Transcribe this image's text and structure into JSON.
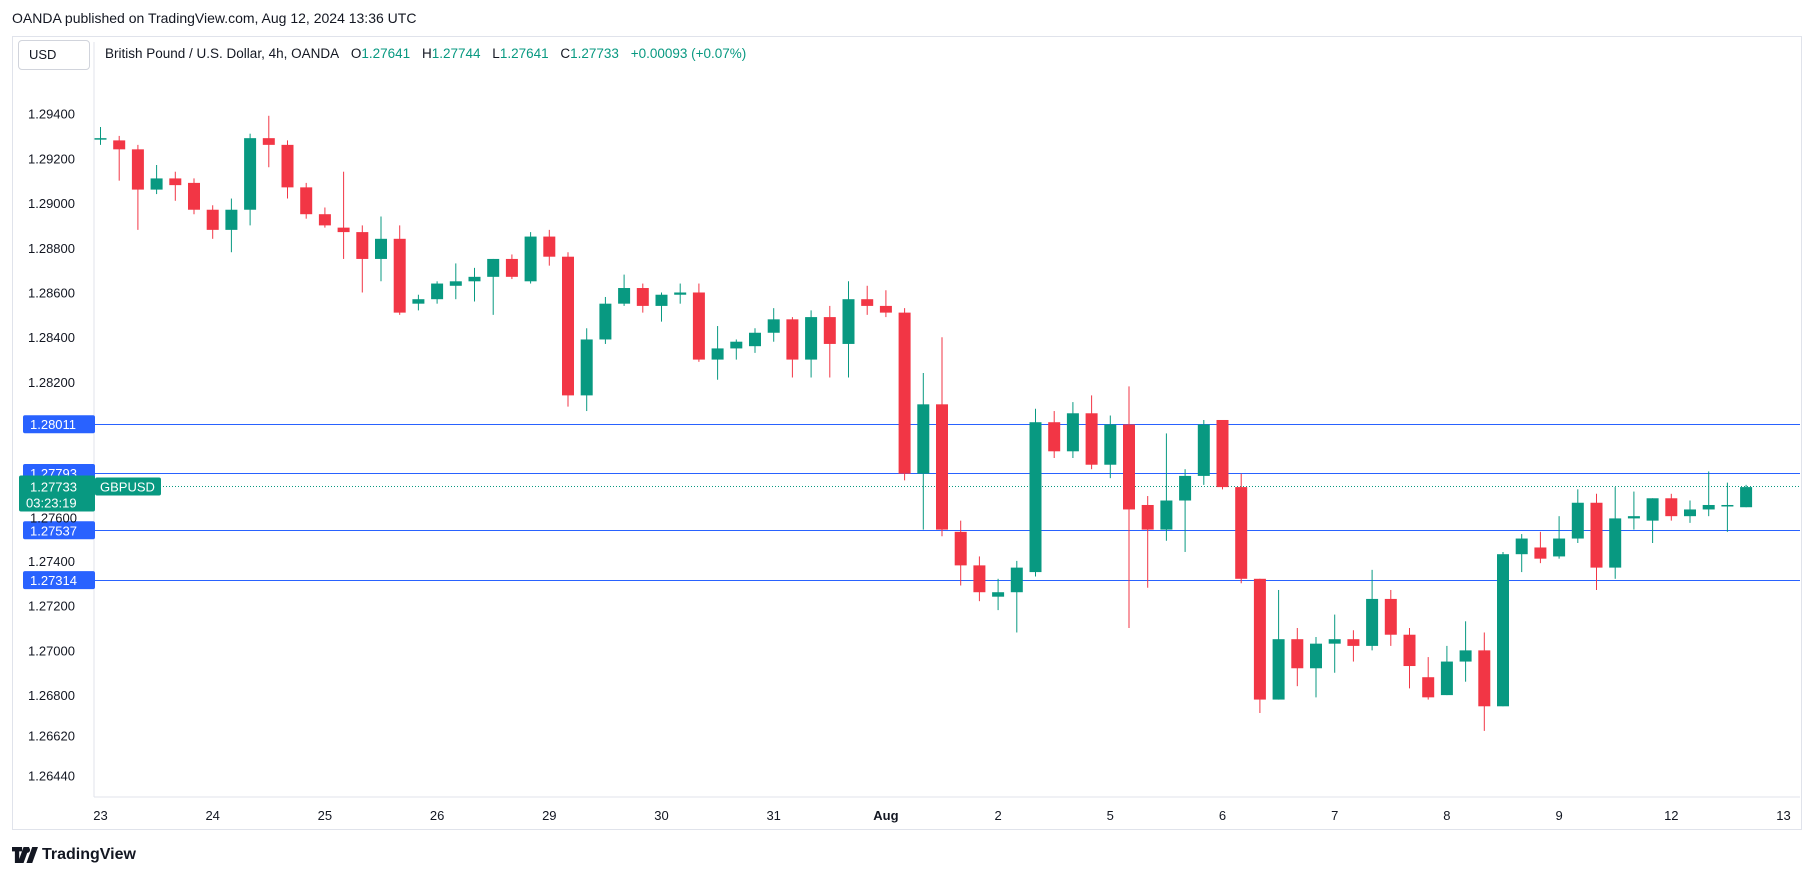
{
  "header": {
    "publisher": "OANDA published on TradingView.com, Aug 12, 2024 13:36 UTC"
  },
  "toolbar": {
    "currency": "USD"
  },
  "legend": {
    "symbol": "British Pound / U.S. Dollar, 4h, OANDA",
    "o_label": "O",
    "o_value": "1.27641",
    "h_label": "H",
    "h_value": "1.27744",
    "l_label": "L",
    "l_value": "1.27641",
    "c_label": "C",
    "c_value": "1.27733",
    "change": "+0.00093 (+0.07%)"
  },
  "footer": {
    "brand": "TradingView"
  },
  "colors": {
    "up": "#089981",
    "down": "#f23645",
    "level_line": "#2962ff",
    "label_bg": "#2962ff",
    "price_bg": "#089981",
    "text": "#131722",
    "axis_text": "#131722"
  },
  "chart_data": {
    "type": "candlestick",
    "symbol": "GBPUSD",
    "timeframe": "4h",
    "ylim": [
      1.2634,
      1.2955
    ],
    "y_ticks": [
      "1.29400",
      "1.29200",
      "1.29000",
      "1.28800",
      "1.28600",
      "1.28400",
      "1.28200",
      "1.27400",
      "1.27200",
      "1.27000",
      "1.26800",
      "1.26620",
      "1.26440"
    ],
    "x_ticks": [
      {
        "label": "23",
        "bar": 0
      },
      {
        "label": "24",
        "bar": 6
      },
      {
        "label": "25",
        "bar": 12
      },
      {
        "label": "26",
        "bar": 18
      },
      {
        "label": "29",
        "bar": 24
      },
      {
        "label": "30",
        "bar": 30
      },
      {
        "label": "31",
        "bar": 36
      },
      {
        "label": "Aug",
        "bar": 42
      },
      {
        "label": "2",
        "bar": 48
      },
      {
        "label": "5",
        "bar": 54
      },
      {
        "label": "6",
        "bar": 60
      },
      {
        "label": "7",
        "bar": 66
      },
      {
        "label": "8",
        "bar": 72
      },
      {
        "label": "9",
        "bar": 78
      },
      {
        "label": "12",
        "bar": 84
      },
      {
        "label": "13",
        "bar": 90
      }
    ],
    "levels": [
      {
        "value": 1.28011,
        "label": "1.28011"
      },
      {
        "value": 1.27793,
        "label": "1.27793"
      },
      {
        "value": 1.27537,
        "label": "1.27537"
      },
      {
        "value": 1.27314,
        "label": "1.27314"
      }
    ],
    "current_price": {
      "value": 1.27733,
      "label": "1.27733",
      "countdown": "03:23:19",
      "symbol_tag": "GBPUSD",
      "hidden_tick": "1.27600"
    },
    "candles": [
      {
        "o": 1.2929,
        "h": 1.2934,
        "l": 1.2926,
        "c": 1.2929
      },
      {
        "o": 1.2928,
        "h": 1.293,
        "l": 1.291,
        "c": 1.2924
      },
      {
        "o": 1.2924,
        "h": 1.2926,
        "l": 1.2888,
        "c": 1.2906
      },
      {
        "o": 1.2906,
        "h": 1.2917,
        "l": 1.2904,
        "c": 1.2911
      },
      {
        "o": 1.2911,
        "h": 1.2914,
        "l": 1.2901,
        "c": 1.2908
      },
      {
        "o": 1.2909,
        "h": 1.2911,
        "l": 1.2895,
        "c": 1.2897
      },
      {
        "o": 1.2897,
        "h": 1.2899,
        "l": 1.2884,
        "c": 1.2888
      },
      {
        "o": 1.2888,
        "h": 1.2902,
        "l": 1.2878,
        "c": 1.2897
      },
      {
        "o": 1.2897,
        "h": 1.2931,
        "l": 1.289,
        "c": 1.2929
      },
      {
        "o": 1.2929,
        "h": 1.2939,
        "l": 1.2916,
        "c": 1.2926
      },
      {
        "o": 1.2926,
        "h": 1.2928,
        "l": 1.2902,
        "c": 1.2907
      },
      {
        "o": 1.2907,
        "h": 1.2909,
        "l": 1.2893,
        "c": 1.2895
      },
      {
        "o": 1.2895,
        "h": 1.2898,
        "l": 1.2889,
        "c": 1.289
      },
      {
        "o": 1.2889,
        "h": 1.2914,
        "l": 1.2875,
        "c": 1.2887
      },
      {
        "o": 1.2887,
        "h": 1.289,
        "l": 1.286,
        "c": 1.2875
      },
      {
        "o": 1.2875,
        "h": 1.2894,
        "l": 1.2865,
        "c": 1.2884
      },
      {
        "o": 1.2884,
        "h": 1.289,
        "l": 1.285,
        "c": 1.2851
      },
      {
        "o": 1.2855,
        "h": 1.2859,
        "l": 1.2852,
        "c": 1.2857
      },
      {
        "o": 1.2857,
        "h": 1.2865,
        "l": 1.2855,
        "c": 1.2864
      },
      {
        "o": 1.2863,
        "h": 1.2873,
        "l": 1.2857,
        "c": 1.2865
      },
      {
        "o": 1.2865,
        "h": 1.2871,
        "l": 1.2856,
        "c": 1.2867
      },
      {
        "o": 1.2867,
        "h": 1.2875,
        "l": 1.285,
        "c": 1.2875
      },
      {
        "o": 1.2875,
        "h": 1.2877,
        "l": 1.2866,
        "c": 1.2867
      },
      {
        "o": 1.2865,
        "h": 1.2887,
        "l": 1.2864,
        "c": 1.2885
      },
      {
        "o": 1.2885,
        "h": 1.2888,
        "l": 1.2872,
        "c": 1.2876
      },
      {
        "o": 1.2876,
        "h": 1.2878,
        "l": 1.2809,
        "c": 1.2814
      },
      {
        "o": 1.2814,
        "h": 1.2844,
        "l": 1.2807,
        "c": 1.2839
      },
      {
        "o": 1.2839,
        "h": 1.2858,
        "l": 1.2837,
        "c": 1.2855
      },
      {
        "o": 1.2855,
        "h": 1.2868,
        "l": 1.2854,
        "c": 1.2862
      },
      {
        "o": 1.2862,
        "h": 1.2864,
        "l": 1.2851,
        "c": 1.2854
      },
      {
        "o": 1.2854,
        "h": 1.286,
        "l": 1.2847,
        "c": 1.2859
      },
      {
        "o": 1.2859,
        "h": 1.2864,
        "l": 1.2855,
        "c": 1.286
      },
      {
        "o": 1.286,
        "h": 1.2864,
        "l": 1.2829,
        "c": 1.283
      },
      {
        "o": 1.283,
        "h": 1.2845,
        "l": 1.2821,
        "c": 1.2835
      },
      {
        "o": 1.2835,
        "h": 1.2839,
        "l": 1.283,
        "c": 1.2838
      },
      {
        "o": 1.2836,
        "h": 1.2844,
        "l": 1.2833,
        "c": 1.2842
      },
      {
        "o": 1.2842,
        "h": 1.2853,
        "l": 1.2838,
        "c": 1.2848
      },
      {
        "o": 1.2848,
        "h": 1.2849,
        "l": 1.2822,
        "c": 1.283
      },
      {
        "o": 1.283,
        "h": 1.2852,
        "l": 1.2822,
        "c": 1.2849
      },
      {
        "o": 1.2849,
        "h": 1.2854,
        "l": 1.2822,
        "c": 1.2837
      },
      {
        "o": 1.2837,
        "h": 1.2865,
        "l": 1.2822,
        "c": 1.2857
      },
      {
        "o": 1.2857,
        "h": 1.2863,
        "l": 1.285,
        "c": 1.2854
      },
      {
        "o": 1.2854,
        "h": 1.2861,
        "l": 1.2849,
        "c": 1.2851
      },
      {
        "o": 1.2851,
        "h": 1.2853,
        "l": 1.2776,
        "c": 1.2779
      },
      {
        "o": 1.2779,
        "h": 1.2824,
        "l": 1.2754,
        "c": 1.281
      },
      {
        "o": 1.281,
        "h": 1.284,
        "l": 1.2751,
        "c": 1.2754
      },
      {
        "o": 1.2753,
        "h": 1.2758,
        "l": 1.2729,
        "c": 1.2738
      },
      {
        "o": 1.2738,
        "h": 1.2742,
        "l": 1.2722,
        "c": 1.2726
      },
      {
        "o": 1.2724,
        "h": 1.2732,
        "l": 1.2718,
        "c": 1.2726
      },
      {
        "o": 1.2726,
        "h": 1.274,
        "l": 1.2708,
        "c": 1.2737
      },
      {
        "o": 1.2735,
        "h": 1.2808,
        "l": 1.2733,
        "c": 1.2802
      },
      {
        "o": 1.2802,
        "h": 1.2807,
        "l": 1.2786,
        "c": 1.2789
      },
      {
        "o": 1.2789,
        "h": 1.2811,
        "l": 1.2786,
        "c": 1.2806
      },
      {
        "o": 1.2806,
        "h": 1.2814,
        "l": 1.2781,
        "c": 1.2783
      },
      {
        "o": 1.2783,
        "h": 1.2805,
        "l": 1.2777,
        "c": 1.2801
      },
      {
        "o": 1.2801,
        "h": 1.2818,
        "l": 1.271,
        "c": 1.2763
      },
      {
        "o": 1.2765,
        "h": 1.2769,
        "l": 1.2728,
        "c": 1.2754
      },
      {
        "o": 1.2754,
        "h": 1.2797,
        "l": 1.2749,
        "c": 1.2767
      },
      {
        "o": 1.2767,
        "h": 1.2781,
        "l": 1.2744,
        "c": 1.2778
      },
      {
        "o": 1.2778,
        "h": 1.2803,
        "l": 1.2774,
        "c": 1.2801
      },
      {
        "o": 1.2803,
        "h": 1.2803,
        "l": 1.2772,
        "c": 1.2773
      },
      {
        "o": 1.2773,
        "h": 1.2779,
        "l": 1.273,
        "c": 1.2732
      },
      {
        "o": 1.2732,
        "h": 1.2732,
        "l": 1.2672,
        "c": 1.2678
      },
      {
        "o": 1.2678,
        "h": 1.2727,
        "l": 1.2678,
        "c": 1.2705
      },
      {
        "o": 1.2705,
        "h": 1.271,
        "l": 1.2684,
        "c": 1.2692
      },
      {
        "o": 1.2692,
        "h": 1.2706,
        "l": 1.2679,
        "c": 1.2703
      },
      {
        "o": 1.2703,
        "h": 1.2716,
        "l": 1.269,
        "c": 1.2705
      },
      {
        "o": 1.2705,
        "h": 1.2709,
        "l": 1.2695,
        "c": 1.2702
      },
      {
        "o": 1.2702,
        "h": 1.2736,
        "l": 1.27,
        "c": 1.2723
      },
      {
        "o": 1.2723,
        "h": 1.2727,
        "l": 1.2702,
        "c": 1.2707
      },
      {
        "o": 1.2707,
        "h": 1.271,
        "l": 1.2683,
        "c": 1.2693
      },
      {
        "o": 1.2688,
        "h": 1.2697,
        "l": 1.2678,
        "c": 1.2679
      },
      {
        "o": 1.268,
        "h": 1.2702,
        "l": 1.268,
        "c": 1.2695
      },
      {
        "o": 1.2695,
        "h": 1.2713,
        "l": 1.2686,
        "c": 1.27
      },
      {
        "o": 1.27,
        "h": 1.2708,
        "l": 1.2664,
        "c": 1.2675
      },
      {
        "o": 1.2675,
        "h": 1.2744,
        "l": 1.2675,
        "c": 1.2743
      },
      {
        "o": 1.2743,
        "h": 1.2752,
        "l": 1.2735,
        "c": 1.275
      },
      {
        "o": 1.2746,
        "h": 1.2753,
        "l": 1.2739,
        "c": 1.2741
      },
      {
        "o": 1.2742,
        "h": 1.276,
        "l": 1.2741,
        "c": 1.275
      },
      {
        "o": 1.275,
        "h": 1.2772,
        "l": 1.2748,
        "c": 1.2766
      },
      {
        "o": 1.2766,
        "h": 1.277,
        "l": 1.2727,
        "c": 1.2737
      },
      {
        "o": 1.2737,
        "h": 1.2773,
        "l": 1.2732,
        "c": 1.2759
      },
      {
        "o": 1.2759,
        "h": 1.2771,
        "l": 1.2754,
        "c": 1.276
      },
      {
        "o": 1.2758,
        "h": 1.2768,
        "l": 1.2748,
        "c": 1.2768
      },
      {
        "o": 1.2768,
        "h": 1.277,
        "l": 1.2758,
        "c": 1.276
      },
      {
        "o": 1.276,
        "h": 1.2767,
        "l": 1.2757,
        "c": 1.2763
      },
      {
        "o": 1.2763,
        "h": 1.278,
        "l": 1.276,
        "c": 1.2765
      },
      {
        "o": 1.2765,
        "h": 1.2775,
        "l": 1.2753,
        "c": 1.2765
      },
      {
        "o": 1.2764,
        "h": 1.2774,
        "l": 1.2764,
        "c": 1.2773
      }
    ]
  }
}
